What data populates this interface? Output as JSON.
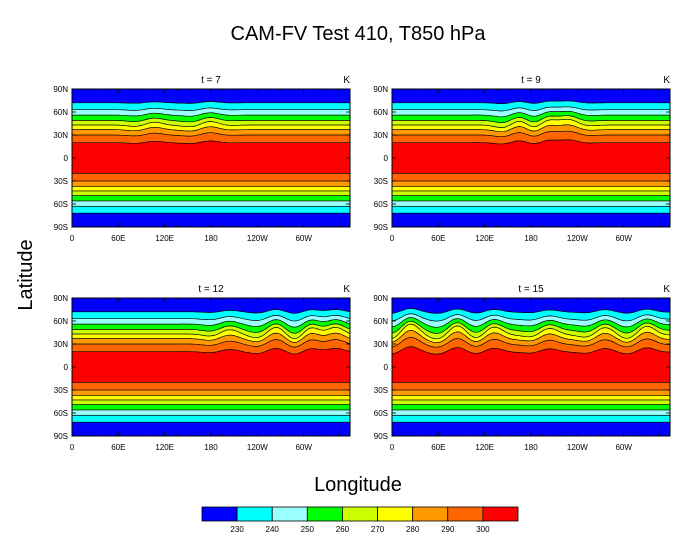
{
  "title": "CAM-FV Test 410, T850 hPa",
  "xlabel": "Longitude",
  "ylabel": "Latitude",
  "chart_data": [
    {
      "type": "heatmap",
      "panel_title": "t = 7",
      "units": "K",
      "x_ticks": [
        "0",
        "60E",
        "120E",
        "180",
        "120W",
        "60W"
      ],
      "y_ticks": [
        "90N",
        "60N",
        "30N",
        "0",
        "30S",
        "60S",
        "90S"
      ],
      "xlim": [
        0,
        360
      ],
      "ylim": [
        -90,
        90
      ],
      "disturbance": [
        [
          0.28,
          4
        ],
        [
          0.48,
          5
        ]
      ]
    },
    {
      "type": "heatmap",
      "panel_title": "t = 9",
      "units": "K",
      "x_ticks": [
        "0",
        "60E",
        "120E",
        "180",
        "120W",
        "60W"
      ],
      "y_ticks": [
        "90N",
        "60N",
        "30N",
        "0",
        "30S",
        "60S",
        "90S"
      ],
      "xlim": [
        0,
        360
      ],
      "ylim": [
        -90,
        90
      ],
      "disturbance": [
        [
          0.45,
          8
        ],
        [
          0.55,
          12
        ],
        [
          0.62,
          9
        ]
      ]
    },
    {
      "type": "heatmap",
      "panel_title": "t = 12",
      "units": "K",
      "x_ticks": [
        "0",
        "60E",
        "120E",
        "180",
        "120W",
        "60W"
      ],
      "y_ticks": [
        "90N",
        "60N",
        "30N",
        "0",
        "30S",
        "60S",
        "90S"
      ],
      "xlim": [
        0,
        360
      ],
      "ylim": [
        -90,
        90
      ],
      "disturbance": [
        [
          0.55,
          6
        ],
        [
          0.72,
          10
        ],
        [
          0.85,
          14
        ],
        [
          0.93,
          11
        ]
      ]
    },
    {
      "type": "heatmap",
      "panel_title": "t = 15",
      "units": "K",
      "x_ticks": [
        "0",
        "60E",
        "120E",
        "180",
        "120W",
        "60W"
      ],
      "y_ticks": [
        "90N",
        "60N",
        "30N",
        "0",
        "30S",
        "60S",
        "90S"
      ],
      "xlim": [
        0,
        360
      ],
      "ylim": [
        -90,
        90
      ],
      "disturbance": [
        [
          0.05,
          14
        ],
        [
          0.22,
          12
        ],
        [
          0.35,
          10
        ],
        [
          0.55,
          8
        ],
        [
          0.75,
          9
        ],
        [
          0.9,
          11
        ]
      ]
    }
  ],
  "colorbar": {
    "labels": [
      "230",
      "240",
      "250",
      "260",
      "270",
      "280",
      "290",
      "300"
    ],
    "colors": [
      "#0000ff",
      "#00ffff",
      "#99ffff",
      "#00ff00",
      "#ccff00",
      "#ffff00",
      "#ff9900",
      "#ff6600",
      "#ff0000"
    ]
  }
}
